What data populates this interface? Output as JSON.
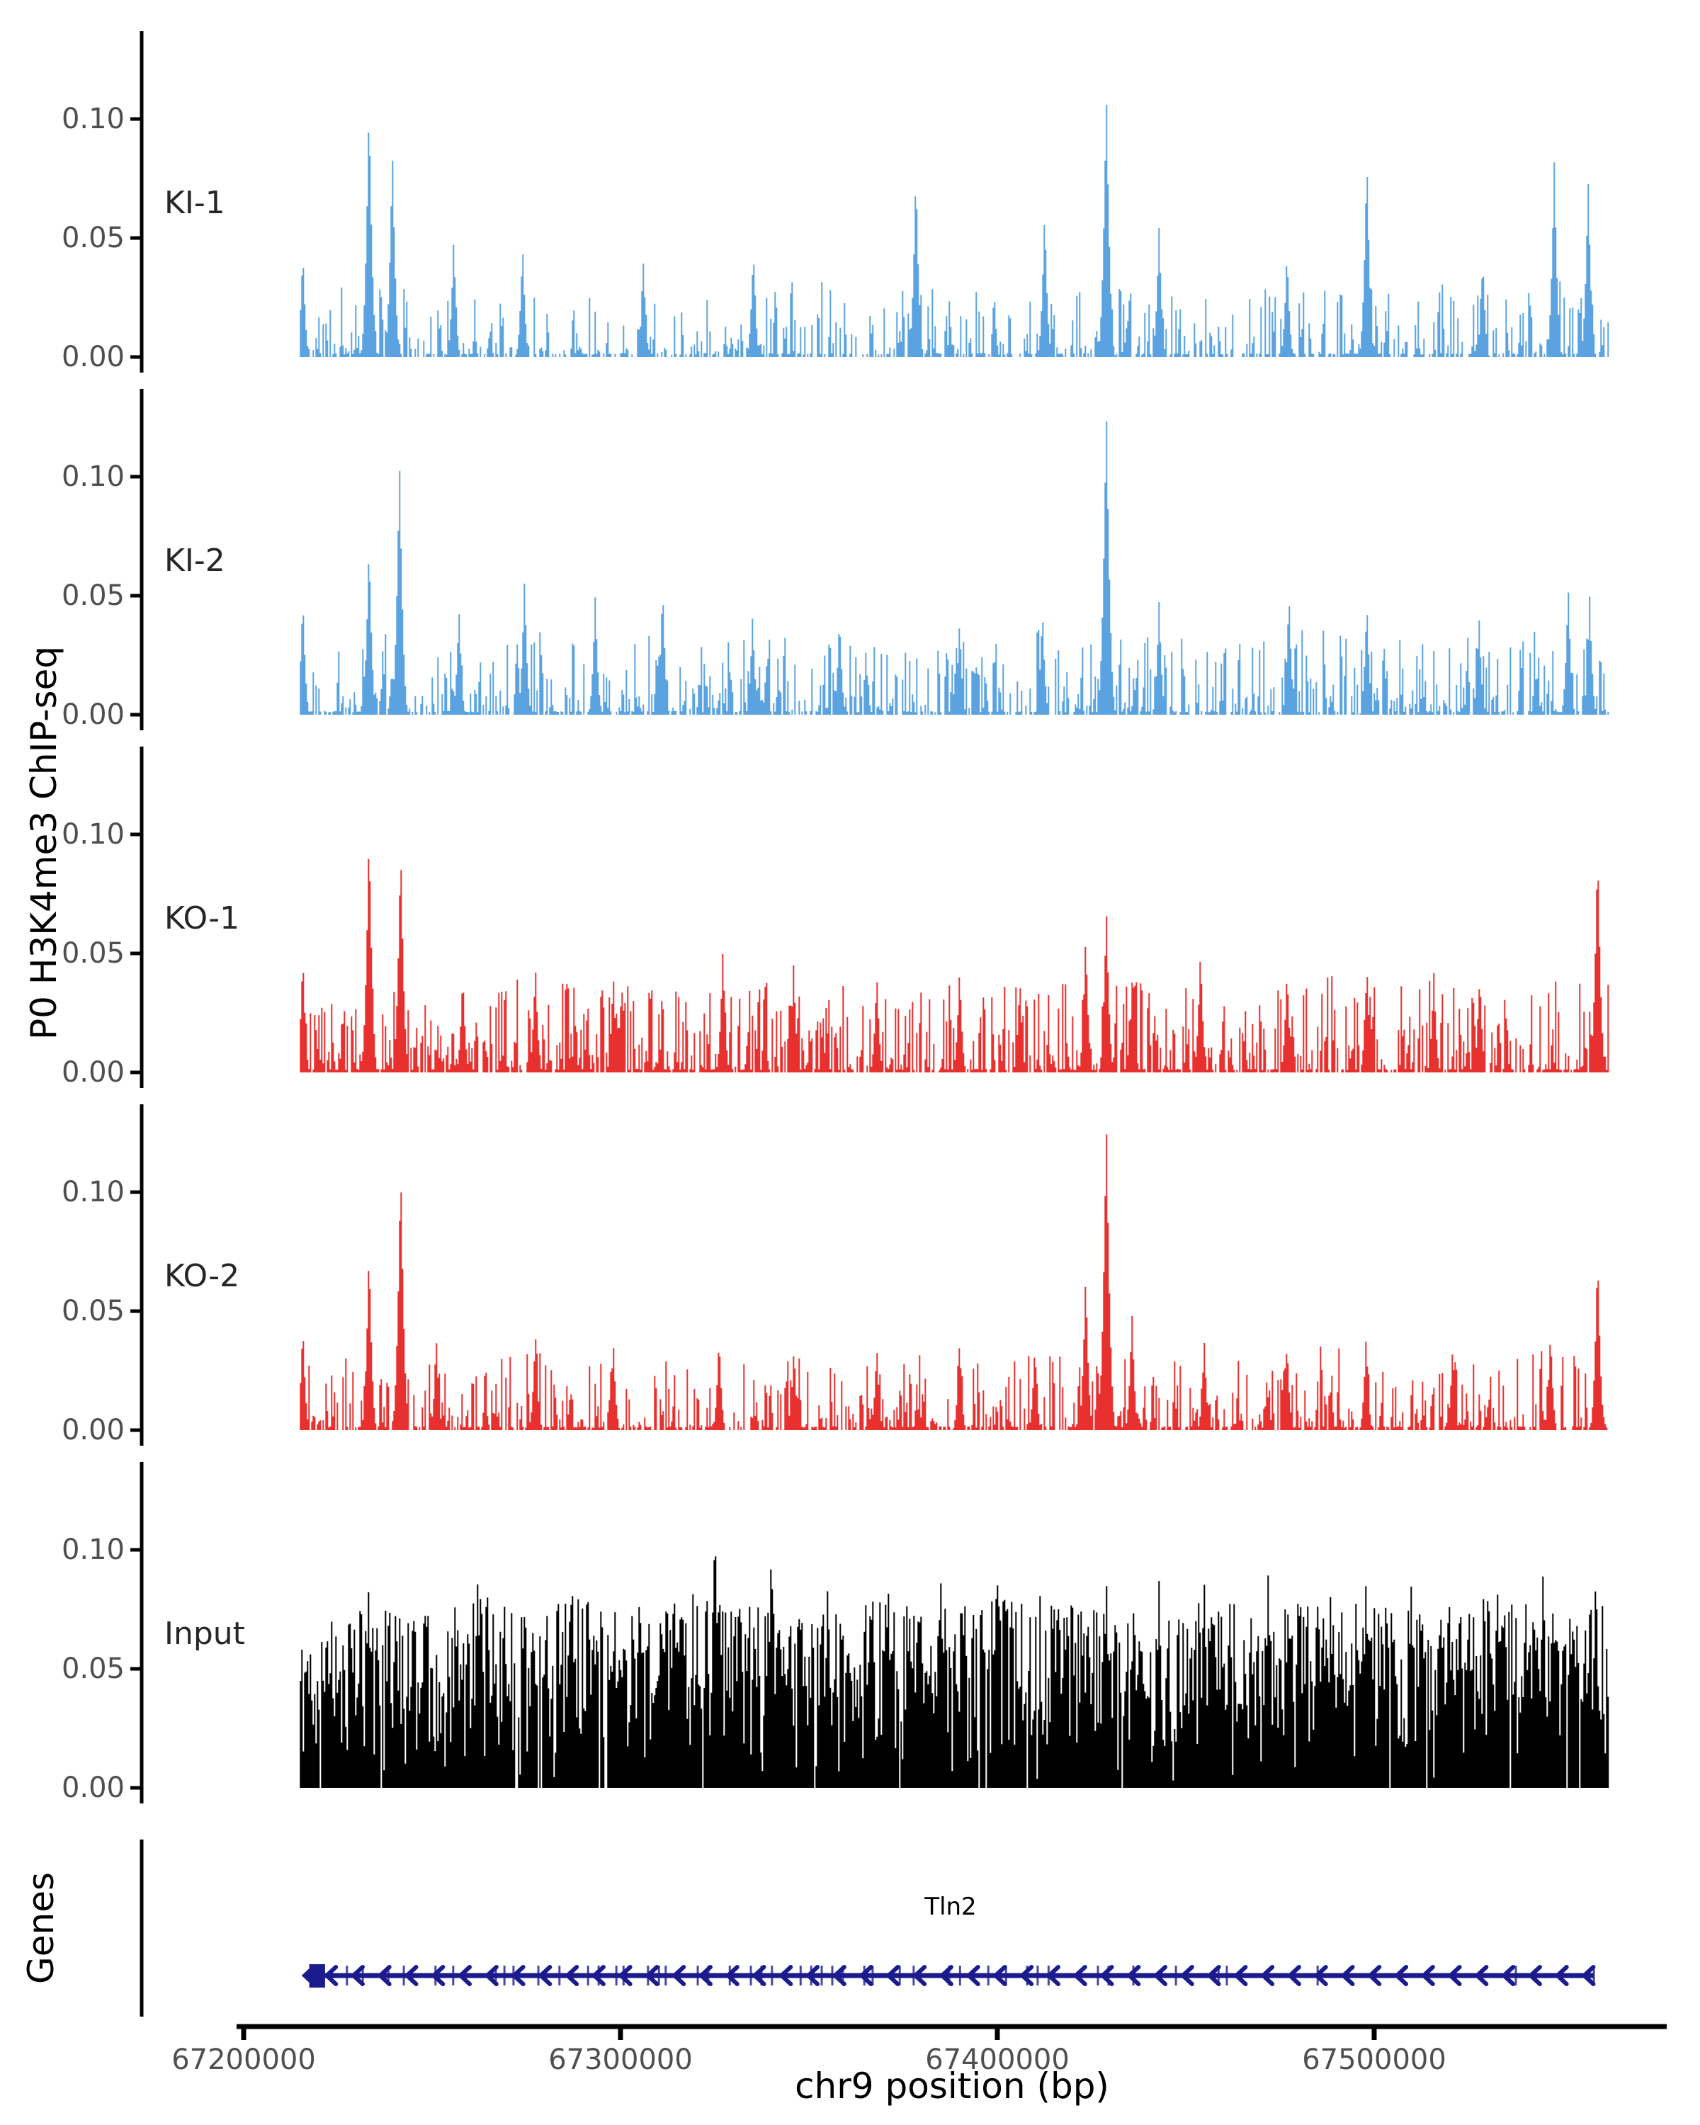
{
  "labels": {
    "y_axis_title": "P0 H3K4me3 ChIP-seq",
    "x_axis_title": "chr9 position (bp)",
    "genes_panel_title": "Genes"
  },
  "style": {
    "background": "#ffffff",
    "axis_color": "#000000",
    "tick_label_color": "#4f4f4f",
    "track_label_color": "#262626",
    "ki_color": "#5BA3E0",
    "ko_color": "#E8302E",
    "input_color": "#000000",
    "gene_color": "#1B1B8E"
  },
  "chart_data": {
    "type": "area",
    "subtype": "genome-coverage-tracks",
    "x_axis": {
      "label": "chr9 position (bp)",
      "ticks": [
        67200000,
        67300000,
        67400000,
        67500000
      ],
      "tick_labels": [
        "67200000",
        "67300000",
        "67400000",
        "67500000"
      ],
      "range_bp": [
        67198100,
        67577800
      ]
    },
    "y_axis": {
      "label": "P0 H3K4me3 ChIP-seq",
      "ticks": [
        0.0,
        0.05,
        0.1
      ],
      "tick_labels": [
        "0.00",
        "0.05",
        "0.10"
      ],
      "range": [
        0,
        0.137
      ]
    },
    "region": {
      "chrom": "chr9",
      "start": 67214900,
      "end": 67562300
    },
    "tracks": [
      {
        "label": "KI-1",
        "color": "#5BA3E0",
        "seed": 11,
        "exponent": 2.4,
        "gap_prob": 0.34,
        "min_h": 0.002,
        "envelope": [
          0.026,
          0.032,
          0.028,
          0.024,
          0.034,
          0.027,
          0.03,
          0.025,
          0.029,
          0.033,
          0.026,
          0.03,
          0.027,
          0.032,
          0.028,
          0.031,
          0.026,
          0.029,
          0.034,
          0.028,
          0.031,
          0.027,
          0.033,
          0.029
        ],
        "peaks": [
          [
            67215500,
            0.045
          ],
          [
            67233100,
            0.107
          ],
          [
            67239300,
            0.088
          ],
          [
            67255600,
            0.05
          ],
          [
            67273900,
            0.048
          ],
          [
            67306000,
            0.04
          ],
          [
            67335200,
            0.046
          ],
          [
            67378400,
            0.079
          ],
          [
            67412600,
            0.062
          ],
          [
            67429000,
            0.112
          ],
          [
            67443000,
            0.055
          ],
          [
            67477000,
            0.045
          ],
          [
            67498200,
            0.085
          ],
          [
            67529000,
            0.042
          ],
          [
            67548000,
            0.082
          ],
          [
            67557000,
            0.075
          ]
        ]
      },
      {
        "label": "KI-2",
        "color": "#5BA3E0",
        "seed": 22,
        "exponent": 2.3,
        "gap_prob": 0.26,
        "min_h": 0.002,
        "envelope": [
          0.03,
          0.036,
          0.032,
          0.028,
          0.038,
          0.031,
          0.034,
          0.029,
          0.033,
          0.037,
          0.03,
          0.034,
          0.031,
          0.036,
          0.032,
          0.035,
          0.03,
          0.033,
          0.038,
          0.032,
          0.035,
          0.031,
          0.037,
          0.033
        ],
        "peaks": [
          [
            67215500,
            0.05
          ],
          [
            67233100,
            0.073
          ],
          [
            67241200,
            0.107
          ],
          [
            67257000,
            0.045
          ],
          [
            67274400,
            0.057
          ],
          [
            67293200,
            0.05
          ],
          [
            67311100,
            0.055
          ],
          [
            67335000,
            0.042
          ],
          [
            67358100,
            0.042
          ],
          [
            67390000,
            0.04
          ],
          [
            67412000,
            0.045
          ],
          [
            67429000,
            0.13
          ],
          [
            67443000,
            0.048
          ],
          [
            67477500,
            0.052
          ],
          [
            67498200,
            0.048
          ],
          [
            67528000,
            0.042
          ],
          [
            67551700,
            0.055
          ],
          [
            67557400,
            0.05
          ]
        ]
      },
      {
        "label": "KO-1",
        "color": "#E8302E",
        "seed": 33,
        "exponent": 2.2,
        "gap_prob": 0.18,
        "min_h": 0.002,
        "envelope": [
          0.034,
          0.04,
          0.036,
          0.032,
          0.042,
          0.035,
          0.038,
          0.033,
          0.037,
          0.041,
          0.034,
          0.038,
          0.035,
          0.04,
          0.036,
          0.039,
          0.034,
          0.037,
          0.042,
          0.036,
          0.039,
          0.035,
          0.041,
          0.037
        ],
        "peaks": [
          [
            67215500,
            0.05
          ],
          [
            67233100,
            0.102
          ],
          [
            67241500,
            0.096
          ],
          [
            67258000,
            0.042
          ],
          [
            67277300,
            0.046
          ],
          [
            67298000,
            0.042
          ],
          [
            67327100,
            0.052
          ],
          [
            67345900,
            0.046
          ],
          [
            67368000,
            0.042
          ],
          [
            67390000,
            0.044
          ],
          [
            67406000,
            0.04
          ],
          [
            67423500,
            0.058
          ],
          [
            67429000,
            0.07
          ],
          [
            67436000,
            0.046
          ],
          [
            67454000,
            0.052
          ],
          [
            67477000,
            0.044
          ],
          [
            67498200,
            0.046
          ],
          [
            67516000,
            0.042
          ],
          [
            67528200,
            0.042
          ],
          [
            67559500,
            0.095
          ]
        ]
      },
      {
        "label": "KO-2",
        "color": "#E8302E",
        "seed": 44,
        "exponent": 2.4,
        "gap_prob": 0.26,
        "min_h": 0.002,
        "envelope": [
          0.028,
          0.034,
          0.03,
          0.026,
          0.036,
          0.029,
          0.032,
          0.027,
          0.031,
          0.035,
          0.028,
          0.032,
          0.029,
          0.034,
          0.03,
          0.033,
          0.028,
          0.031,
          0.036,
          0.03,
          0.033,
          0.029,
          0.035,
          0.031
        ],
        "peaks": [
          [
            67215500,
            0.045
          ],
          [
            67233100,
            0.077
          ],
          [
            67241500,
            0.112
          ],
          [
            67251000,
            0.038
          ],
          [
            67277300,
            0.042
          ],
          [
            67298000,
            0.038
          ],
          [
            67326100,
            0.04
          ],
          [
            67346000,
            0.036
          ],
          [
            67368000,
            0.036
          ],
          [
            67390000,
            0.038
          ],
          [
            67410000,
            0.036
          ],
          [
            67423500,
            0.066
          ],
          [
            67429000,
            0.131
          ],
          [
            67435800,
            0.05
          ],
          [
            67455000,
            0.038
          ],
          [
            67477000,
            0.038
          ],
          [
            67498000,
            0.04
          ],
          [
            67521000,
            0.036
          ],
          [
            67547000,
            0.042
          ],
          [
            67559500,
            0.075
          ]
        ]
      },
      {
        "label": "Input",
        "color": "#000000",
        "seed": 55,
        "exponent": 0.55,
        "gap_prob": 0.03,
        "min_h": 0.003,
        "envelope": [
          0.07,
          0.078,
          0.072,
          0.082,
          0.075,
          0.08,
          0.073,
          0.084,
          0.077,
          0.071,
          0.081,
          0.074,
          0.079,
          0.083,
          0.076,
          0.072,
          0.08,
          0.075,
          0.082,
          0.077,
          0.073,
          0.081,
          0.076,
          0.079
        ],
        "peaks": [
          [
            67233000,
            0.085
          ],
          [
            67262000,
            0.09
          ],
          [
            67287000,
            0.095
          ],
          [
            67305000,
            0.088
          ],
          [
            67325000,
            0.115
          ],
          [
            67340000,
            0.105
          ],
          [
            67355000,
            0.09
          ],
          [
            67371000,
            0.09
          ],
          [
            67385000,
            0.088
          ],
          [
            67400000,
            0.092
          ],
          [
            67415000,
            0.086
          ],
          [
            67429000,
            0.09
          ],
          [
            67443000,
            0.088
          ],
          [
            67455000,
            0.088
          ],
          [
            67472000,
            0.092
          ],
          [
            67485000,
            0.086
          ],
          [
            67498000,
            0.09
          ],
          [
            67510000,
            0.086
          ],
          [
            67520000,
            0.088
          ],
          [
            67533000,
            0.086
          ],
          [
            67545000,
            0.09
          ],
          [
            67559000,
            0.09
          ]
        ]
      }
    ],
    "gene_panel": {
      "label": "Genes",
      "genes": [
        {
          "name": "Tln2",
          "chrom": "chr9",
          "start": 67216200,
          "end": 67558300,
          "strand": "-",
          "color": "#1B1B8E",
          "start_box": {
            "start": 67217400,
            "end": 67221600
          },
          "arrow_spacing_bp": 7100,
          "exon_ticks": [
            67227400,
            67231600,
            67238400,
            67242500,
            67250900,
            67255600,
            67266900,
            67269200,
            67271600,
            67278200,
            67283800,
            67291400,
            67294200,
            67298900,
            67300800,
            67307300,
            67310200,
            67312000,
            67320500,
            67323300,
            67329000,
            67334600,
            67337400,
            67340200,
            67347800,
            67350600,
            67353400,
            67356200,
            67359000,
            67364700,
            67366900,
            67374100,
            67377800,
            67387200,
            67390100,
            67397600,
            67402300,
            67407900,
            67410700,
            67413600,
            67426700,
            67429500,
            67436100,
            67447400,
            67458700,
            67460900,
            67485000,
            67537600,
            67558300
          ]
        }
      ]
    }
  }
}
